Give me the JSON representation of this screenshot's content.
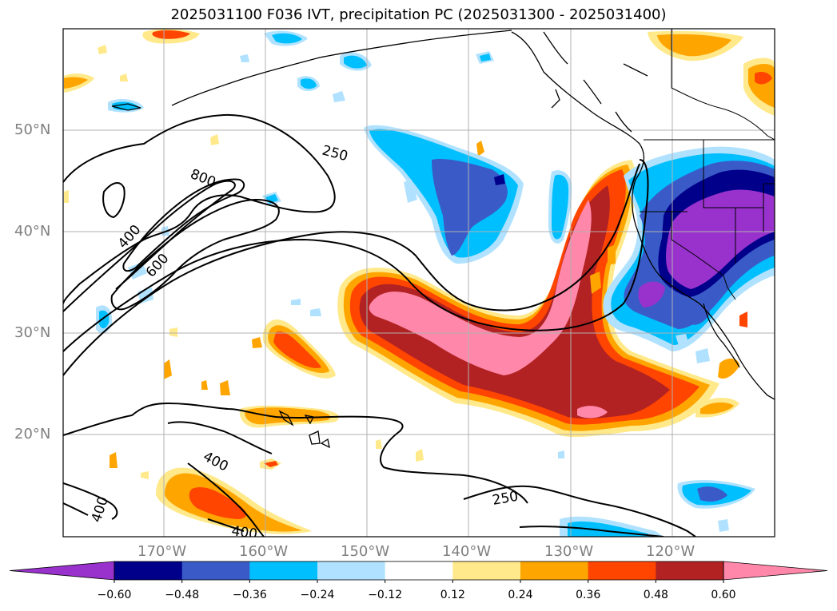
{
  "title": "2025031100 F036 IVT, precipitation PC (2025031300 - 2025031400)",
  "map": {
    "lat_labels": [
      "50°N",
      "40°N",
      "30°N",
      "20°N"
    ],
    "lon_labels": [
      "170°W",
      "160°W",
      "150°W",
      "140°W",
      "130°W",
      "120°W"
    ],
    "ivt_contour_labels": [
      "250",
      "800",
      "400",
      "600",
      "400",
      "400",
      "250",
      "400"
    ],
    "grid": true
  },
  "colorbar": {
    "ticks": [
      "−0.60",
      "−0.48",
      "−0.36",
      "−0.24",
      "−0.12",
      "0.12",
      "0.24",
      "0.36",
      "0.48",
      "0.60"
    ],
    "colors": [
      "#9932cc",
      "#00008b",
      "#3a5bc7",
      "#00bfff",
      "#b0e2ff",
      "#ffffff",
      "#ffe98a",
      "#ffa500",
      "#ff4500",
      "#b22222",
      "#ff88aa"
    ],
    "extend": "both"
  }
}
